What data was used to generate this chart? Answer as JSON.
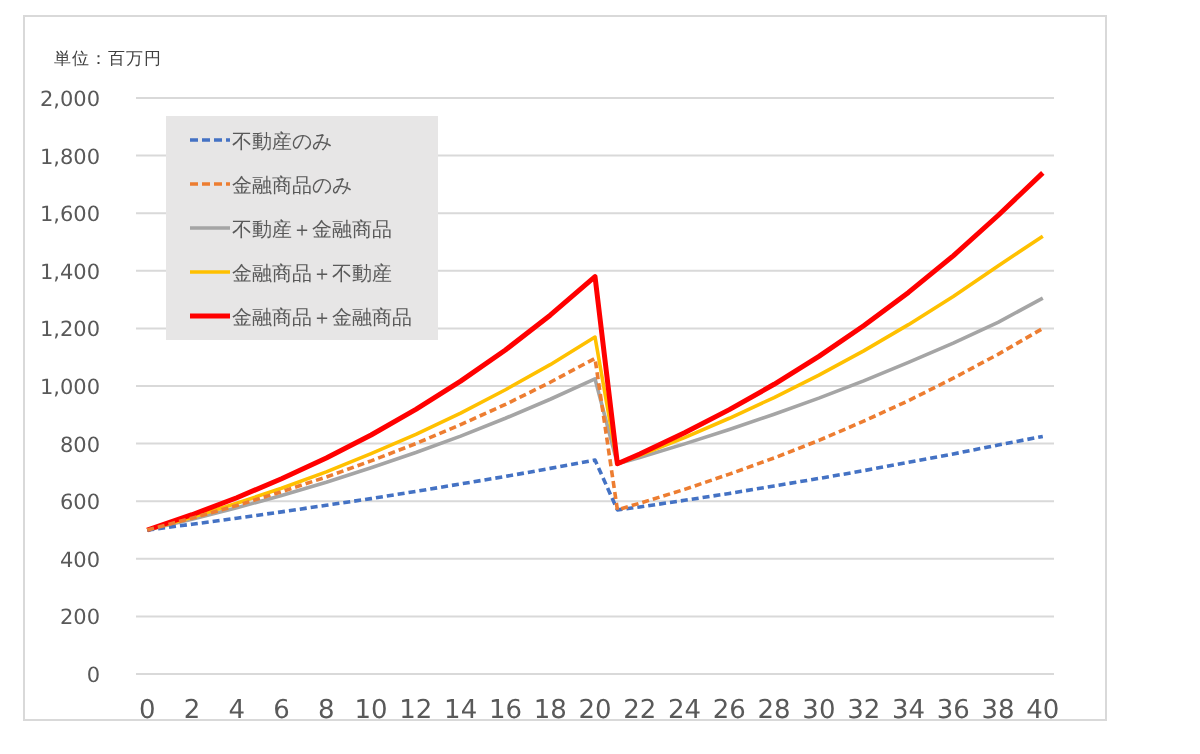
{
  "chart_data": {
    "type": "line",
    "ylabel": "単位：百万円",
    "x": [
      0,
      2,
      4,
      6,
      8,
      10,
      12,
      14,
      16,
      18,
      20,
      21,
      22,
      24,
      26,
      28,
      30,
      32,
      34,
      36,
      38,
      40
    ],
    "series": [
      {
        "name": "不動産のみ",
        "color": "#4472c4",
        "line_style": "dashed",
        "values": [
          500,
          520,
          541,
          563,
          586,
          609,
          634,
          660,
          686,
          714,
          743,
          570,
          580,
          603,
          627,
          653,
          679,
          706,
          735,
          764,
          795,
          825
        ]
      },
      {
        "name": "金融商品のみ",
        "color": "#ed7d31",
        "line_style": "dashed",
        "values": [
          500,
          541,
          585,
          633,
          684,
          740,
          800,
          866,
          936,
          1013,
          1096,
          570,
          593,
          641,
          694,
          750,
          811,
          878,
          949,
          1027,
          1110,
          1200
        ]
      },
      {
        "name": "不動産＋金融商品",
        "color": "#a5a5a5",
        "line_style": "solid",
        "values": [
          500,
          537,
          577,
          620,
          666,
          716,
          769,
          826,
          888,
          954,
          1025,
          730,
          752,
          799,
          849,
          902,
          958,
          1018,
          1082,
          1149,
          1221,
          1305
        ]
      },
      {
        "name": "金融商品＋不動産",
        "color": "#ffc000",
        "line_style": "solid",
        "values": [
          500,
          544,
          593,
          645,
          702,
          765,
          832,
          906,
          987,
          1074,
          1170,
          730,
          759,
          821,
          888,
          960,
          1038,
          1122,
          1213,
          1311,
          1417,
          1520
        ]
      },
      {
        "name": "金融商品＋金融商品",
        "color": "#ff0000",
        "line_style": "solid",
        "values": [
          500,
          553,
          612,
          678,
          750,
          830,
          919,
          1017,
          1125,
          1246,
          1380,
          730,
          764,
          838,
          918,
          1006,
          1103,
          1209,
          1325,
          1452,
          1592,
          1740
        ]
      }
    ],
    "xlim": [
      -0.5,
      40.5
    ],
    "xticks": [
      0,
      2,
      4,
      6,
      8,
      10,
      12,
      14,
      16,
      18,
      20,
      22,
      24,
      26,
      28,
      30,
      32,
      34,
      36,
      38,
      40
    ],
    "ylim": [
      0,
      2000
    ],
    "yticks": [
      {
        "value": 0,
        "label": "0"
      },
      {
        "value": 200,
        "label": "200"
      },
      {
        "value": 400,
        "label": "400"
      },
      {
        "value": 600,
        "label": "600"
      },
      {
        "value": 800,
        "label": "800"
      },
      {
        "value": 1000,
        "label": "1,000"
      },
      {
        "value": 1200,
        "label": "1,200"
      },
      {
        "value": 1400,
        "label": "1,400"
      },
      {
        "value": 1600,
        "label": "1,600"
      },
      {
        "value": 1800,
        "label": "1,800"
      },
      {
        "value": 2000,
        "label": "2,000"
      }
    ],
    "grid": "y",
    "legend": "top left"
  }
}
